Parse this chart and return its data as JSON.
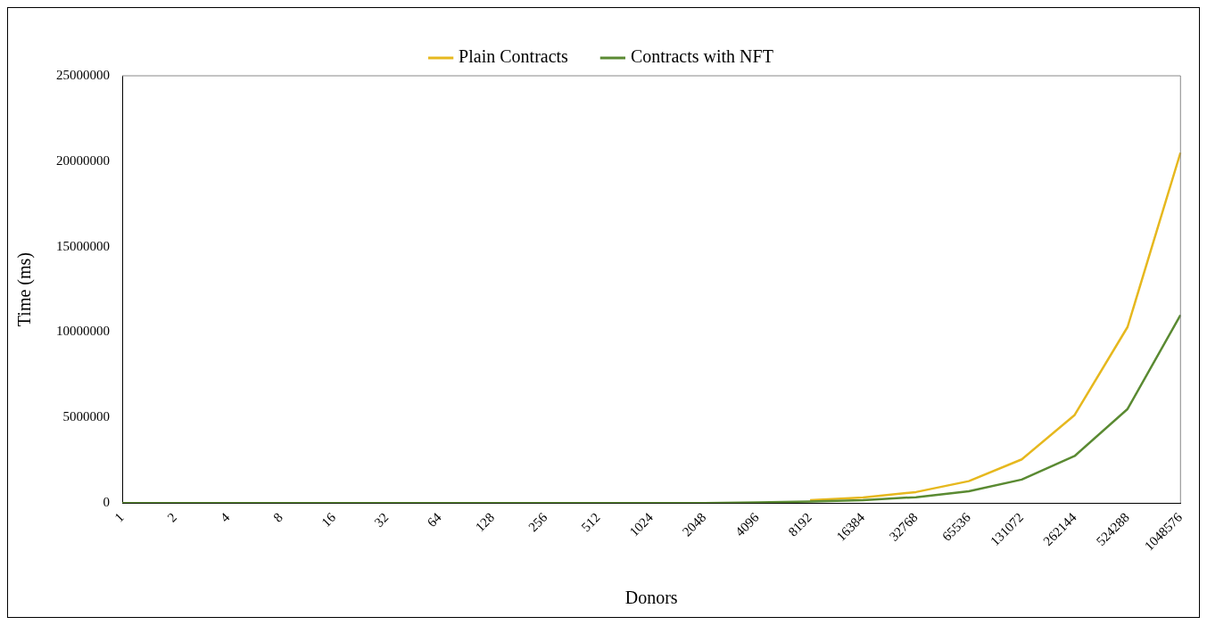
{
  "chart_data": {
    "type": "line",
    "xlabel": "Donors",
    "ylabel": "Time (ms)",
    "categories": [
      "1",
      "2",
      "4",
      "8",
      "16",
      "32",
      "64",
      "128",
      "256",
      "512",
      "1024",
      "2048",
      "4096",
      "8192",
      "16384",
      "32768",
      "65536",
      "131072",
      "262144",
      "524288",
      "1048576"
    ],
    "series": [
      {
        "name": "Plain Contracts",
        "color": "#e6b81e",
        "values": [
          null,
          null,
          null,
          null,
          null,
          null,
          null,
          null,
          null,
          null,
          null,
          null,
          null,
          160000,
          320000,
          640000,
          1280000,
          2550000,
          5150000,
          10300000,
          20500000
        ]
      },
      {
        "name": "Contracts with NFT",
        "color": "#5a8a32",
        "values": [
          0,
          0,
          0,
          0,
          0,
          0,
          0,
          0,
          0,
          0,
          0,
          0,
          40000,
          86000,
          170000,
          340000,
          690000,
          1370000,
          2750000,
          5500000,
          11000000
        ]
      }
    ],
    "ylim": [
      0,
      25000000
    ],
    "yticks": [
      0,
      5000000,
      10000000,
      15000000,
      20000000,
      25000000
    ],
    "grid": false,
    "legend": "top",
    "marker": "none",
    "line_style": "solid"
  }
}
